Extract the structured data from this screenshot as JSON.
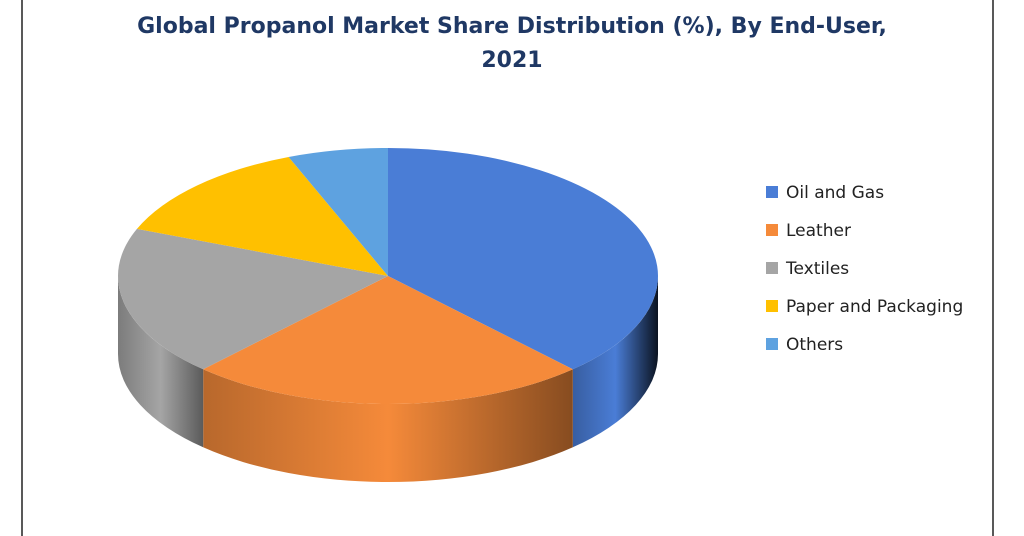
{
  "chart_data": {
    "type": "pie3d",
    "title": "Global Propanol Market Share Distribution (%), By End-User, 2021",
    "categories": [
      "Oil and Gas",
      "Leather",
      "Textiles",
      "Paper and Packaging",
      "Others"
    ],
    "values": [
      38,
      24,
      19,
      13,
      6
    ],
    "colors": [
      "#4a7dd6",
      "#f58a3a",
      "#a5a5a5",
      "#ffc000",
      "#5ea2e0"
    ],
    "legend": "right"
  }
}
